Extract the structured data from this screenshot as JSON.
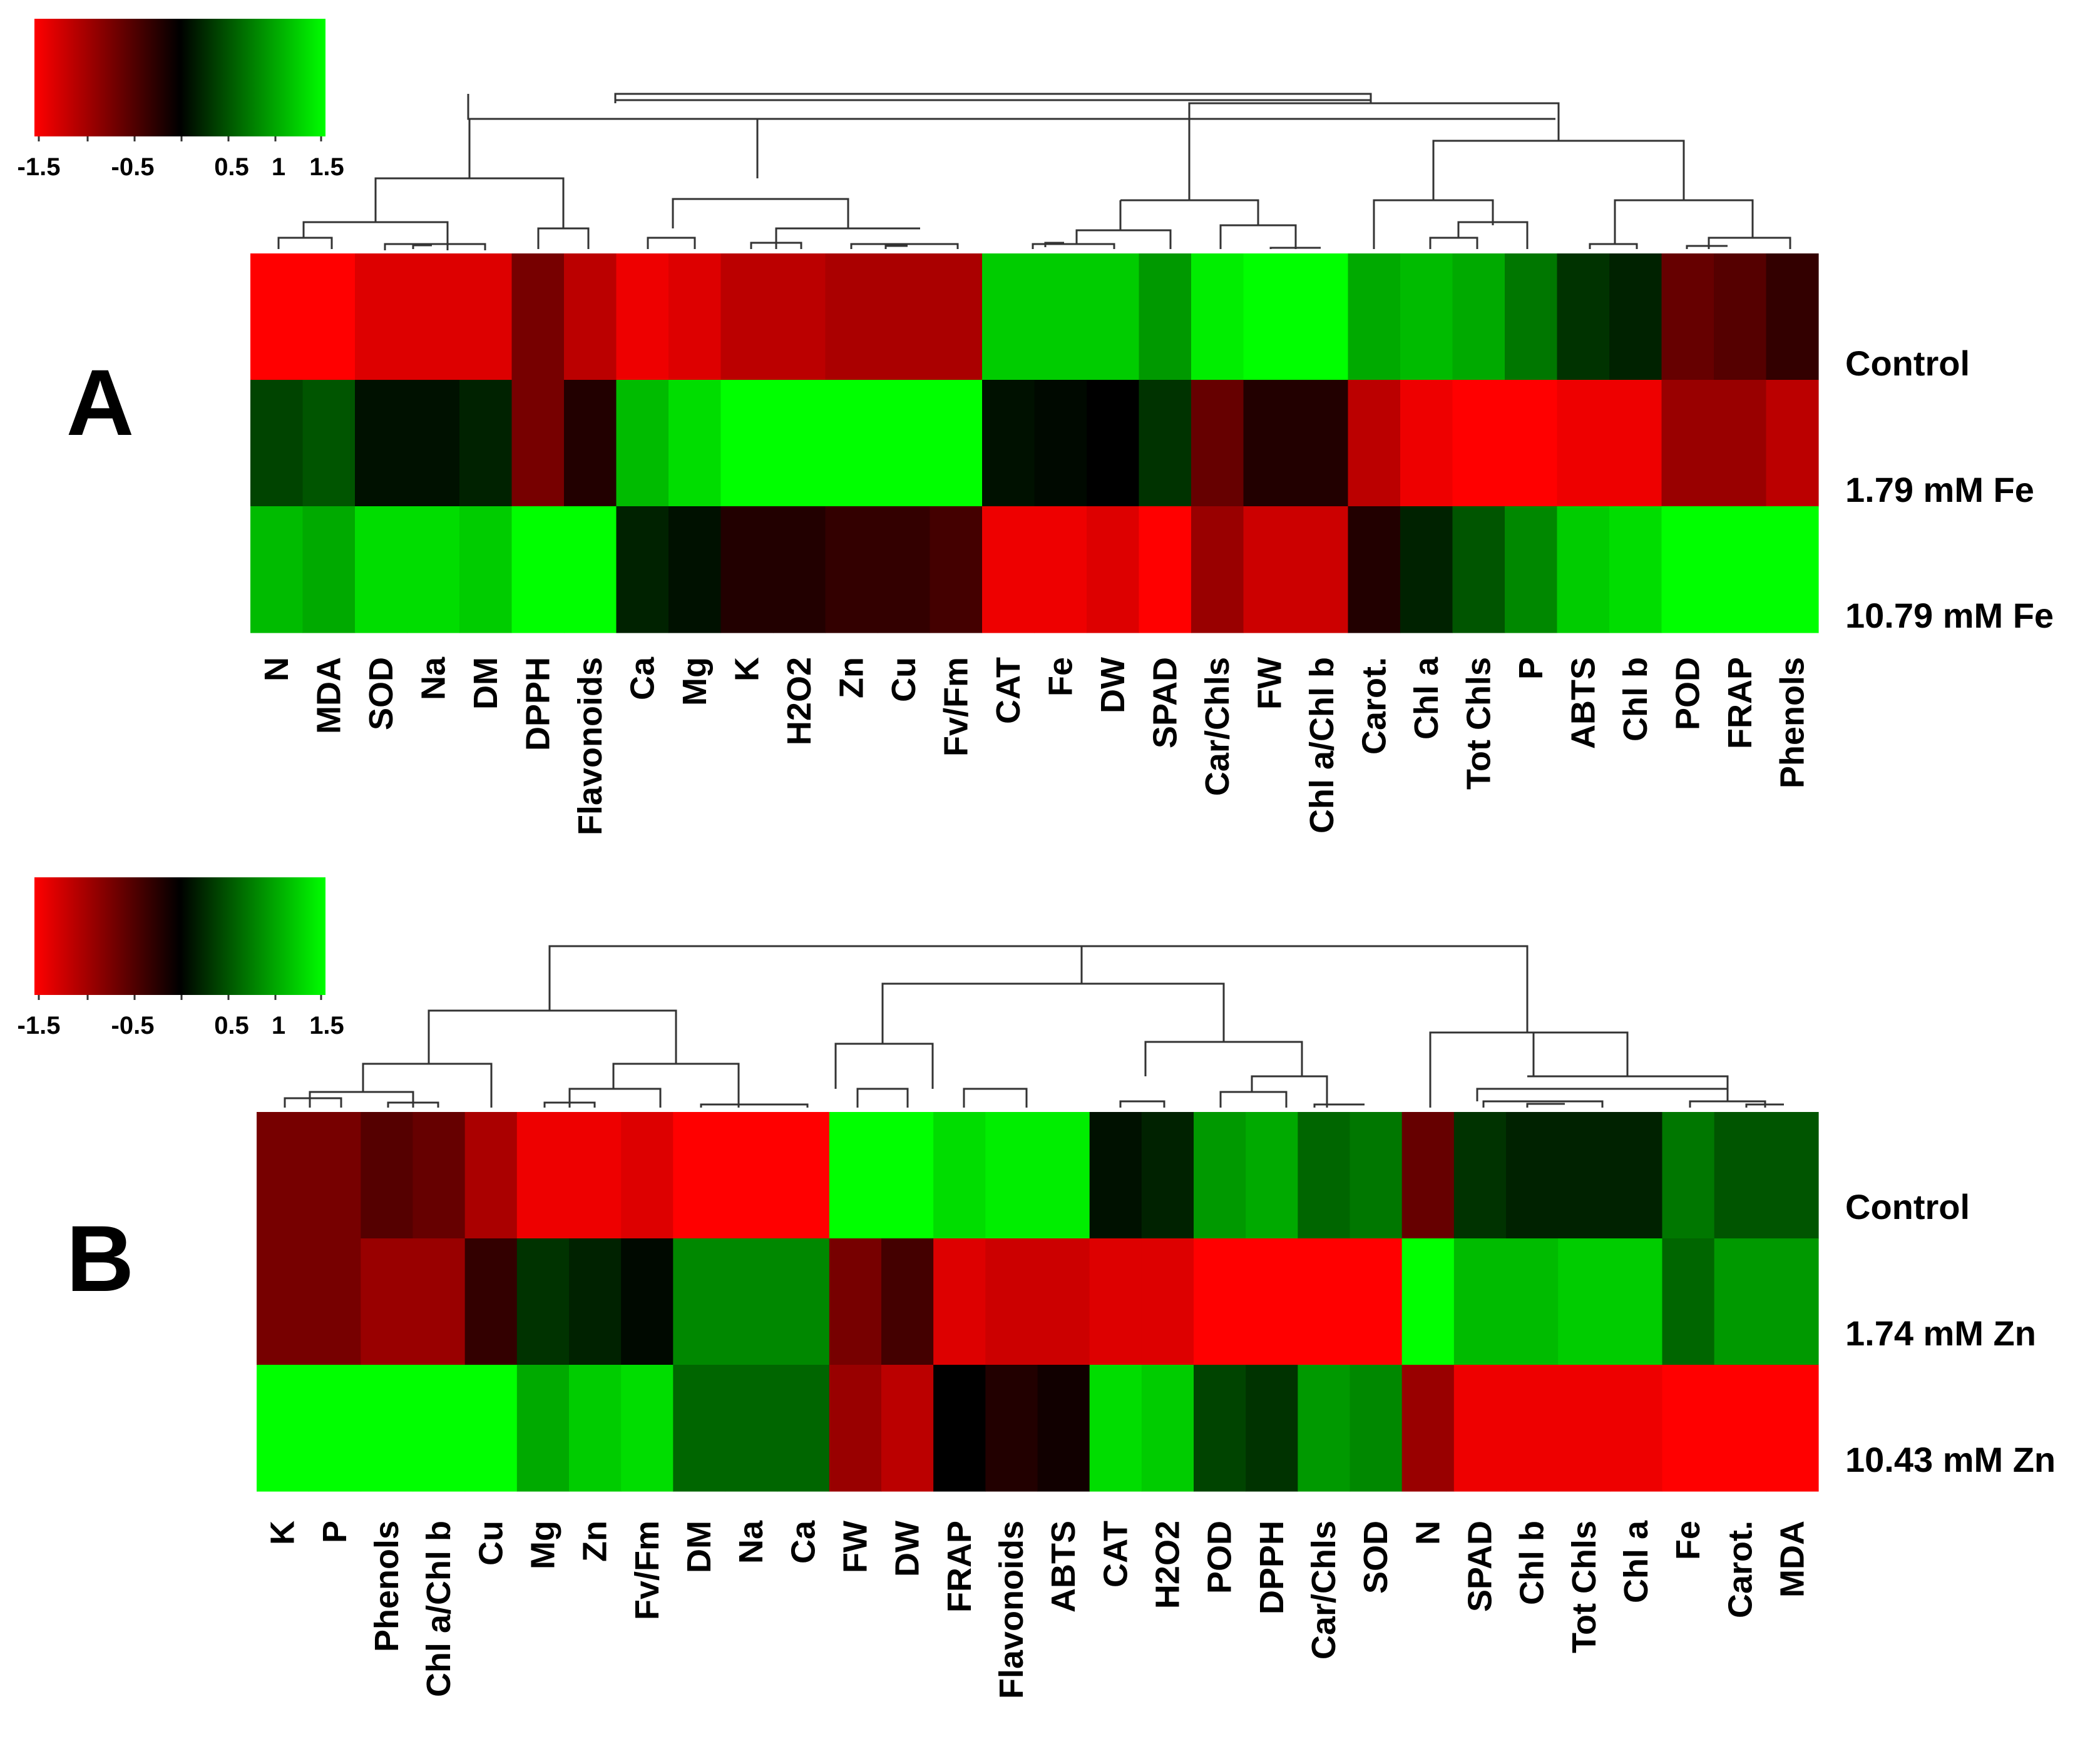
{
  "colors": {
    "low": "#ff0000",
    "mid": "#000000",
    "high": "#00ff00"
  },
  "chart_data": [
    {
      "type": "heatmap",
      "panel": "A",
      "color_scale": {
        "min": -1.5,
        "max": 1.5,
        "tick_labels": [
          "-1.5",
          "-0.5",
          "0.5",
          "1",
          "1.5"
        ]
      },
      "rows": [
        "Control",
        "1.79 mM Fe",
        "10.79 mM Fe"
      ],
      "columns": [
        "N",
        "MDA",
        "SOD",
        "Na",
        "DM",
        "DPPH",
        "Flavonoids",
        "Ca",
        "Mg",
        "K",
        "H2O2",
        "Zn",
        "Cu",
        "Fv/Fm",
        "CAT",
        "Fe",
        "DW",
        "SPAD",
        "Car/Chls",
        "FW",
        "Chl a/Chl b",
        "Carot.",
        "Chl a",
        "Tot Chls",
        "P",
        "ABTS",
        "Chl b",
        "POD",
        "FRAP",
        "Phenols"
      ],
      "values": [
        [
          -1.5,
          -1.5,
          -1.3,
          -1.3,
          -1.3,
          -0.7,
          -1.1,
          -1.4,
          -1.3,
          -1.1,
          -1.1,
          -1.0,
          -1.0,
          -1.0,
          1.2,
          1.2,
          1.2,
          0.9,
          1.4,
          1.5,
          1.5,
          1.0,
          1.1,
          1.0,
          0.7,
          0.3,
          0.2,
          -0.6,
          -0.5,
          -0.3
        ],
        [
          0.4,
          0.5,
          0.1,
          0.1,
          0.2,
          -0.7,
          -0.2,
          1.1,
          1.3,
          1.5,
          1.5,
          1.5,
          1.5,
          1.5,
          0.1,
          0.05,
          0.0,
          0.3,
          -0.6,
          -0.2,
          -0.2,
          -1.1,
          -1.4,
          -1.5,
          -1.5,
          -1.4,
          -1.4,
          -0.9,
          -0.9,
          -1.1
        ],
        [
          1.1,
          1.0,
          1.3,
          1.3,
          1.2,
          1.5,
          1.5,
          0.2,
          0.1,
          -0.2,
          -0.2,
          -0.3,
          -0.3,
          -0.4,
          -1.4,
          -1.4,
          -1.3,
          -1.5,
          -0.9,
          -1.2,
          -1.2,
          -0.2,
          0.2,
          0.5,
          0.8,
          1.2,
          1.3,
          1.5,
          1.5,
          1.5
        ]
      ]
    },
    {
      "type": "heatmap",
      "panel": "B",
      "color_scale": {
        "min": -1.5,
        "max": 1.5,
        "tick_labels": [
          "-1.5",
          "-0.5",
          "0.5",
          "1",
          "1.5"
        ]
      },
      "rows": [
        "Control",
        "1.74 mM Zn",
        "10.43 mM Zn"
      ],
      "columns": [
        "K",
        "P",
        "Phenols",
        "Chl a/Chl b",
        "Cu",
        "Mg",
        "Zn",
        "Fv/Fm",
        "DM",
        "Na",
        "Ca",
        "FW",
        "DW",
        "FRAP",
        "Flavonoids",
        "ABTS",
        "CAT",
        "H2O2",
        "POD",
        "DPPH",
        "Car/Chls",
        "SOD",
        "N",
        "SPAD",
        "Chl b",
        "Tot Chls",
        "Chl a",
        "Fe",
        "Carot.",
        "MDA"
      ],
      "values": [
        [
          -0.7,
          -0.7,
          -0.5,
          -0.6,
          -1.0,
          -1.4,
          -1.4,
          -1.3,
          -1.5,
          -1.5,
          -1.5,
          1.5,
          1.5,
          1.3,
          1.4,
          1.4,
          0.1,
          0.2,
          0.9,
          1.0,
          0.6,
          0.7,
          -0.6,
          0.3,
          0.2,
          0.2,
          0.2,
          0.7,
          0.5,
          0.5
        ],
        [
          -0.7,
          -0.7,
          -0.9,
          -0.9,
          -0.3,
          0.3,
          0.2,
          0.05,
          0.8,
          0.8,
          0.8,
          -0.7,
          -0.4,
          -1.3,
          -1.2,
          -1.2,
          -1.3,
          -1.3,
          -1.5,
          -1.5,
          -1.5,
          -1.5,
          1.5,
          1.1,
          1.1,
          1.2,
          1.2,
          0.6,
          0.9,
          0.9
        ],
        [
          1.5,
          1.5,
          1.5,
          1.5,
          1.5,
          1.0,
          1.2,
          1.3,
          0.6,
          0.6,
          0.6,
          -0.9,
          -1.1,
          0.0,
          -0.2,
          -0.1,
          1.3,
          1.2,
          0.4,
          0.3,
          0.9,
          0.8,
          -0.9,
          -1.4,
          -1.4,
          -1.4,
          -1.4,
          -1.5,
          -1.5,
          -1.5
        ]
      ]
    }
  ]
}
